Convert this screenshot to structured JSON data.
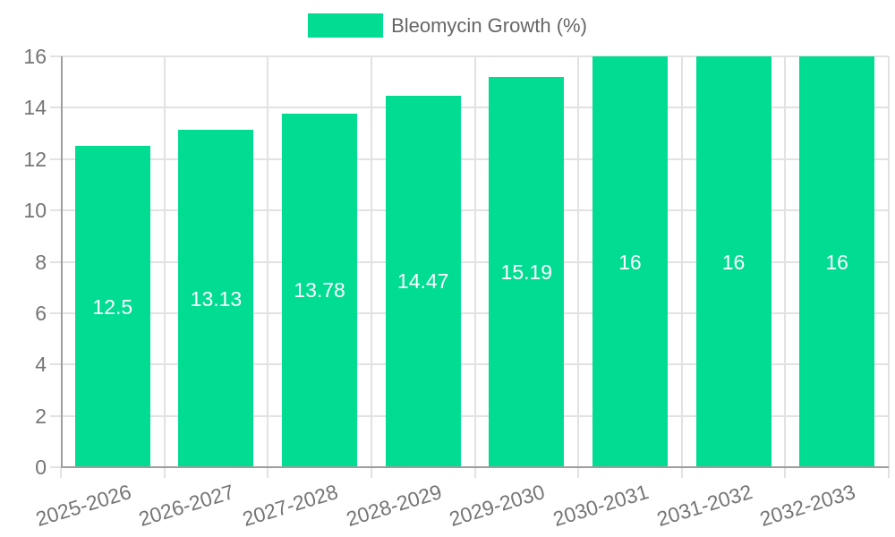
{
  "legend": {
    "label": "Bleomycin Growth (%)"
  },
  "chart_data": {
    "type": "bar",
    "title": "",
    "xlabel": "",
    "ylabel": "",
    "legend_position": "top",
    "categories": [
      "2025-2026",
      "2026-2027",
      "2027-2028",
      "2028-2029",
      "2029-2030",
      "2030-2031",
      "2031-2032",
      "2032-2033"
    ],
    "series": [
      {
        "name": "Bleomycin Growth (%)",
        "values": [
          12.5,
          13.13,
          13.78,
          14.47,
          15.19,
          16,
          16,
          16
        ],
        "value_labels": [
          "12.5",
          "13.13",
          "13.78",
          "14.47",
          "15.19",
          "16",
          "16",
          "16"
        ]
      }
    ],
    "ylim": [
      0,
      16
    ],
    "yticks": [
      0,
      2,
      4,
      6,
      8,
      10,
      12,
      14,
      16
    ],
    "ytick_labels": [
      "0",
      "2",
      "4",
      "6",
      "8",
      "10",
      "12",
      "14",
      "16"
    ],
    "grid": true,
    "colors": {
      "bar": "#00dc91",
      "grid": "#e2e2e2",
      "axis": "#9e9e9e",
      "tick_label": "#757575",
      "value_label": "#ffffff",
      "legend_text": "#666666",
      "background": "#ffffff"
    }
  }
}
